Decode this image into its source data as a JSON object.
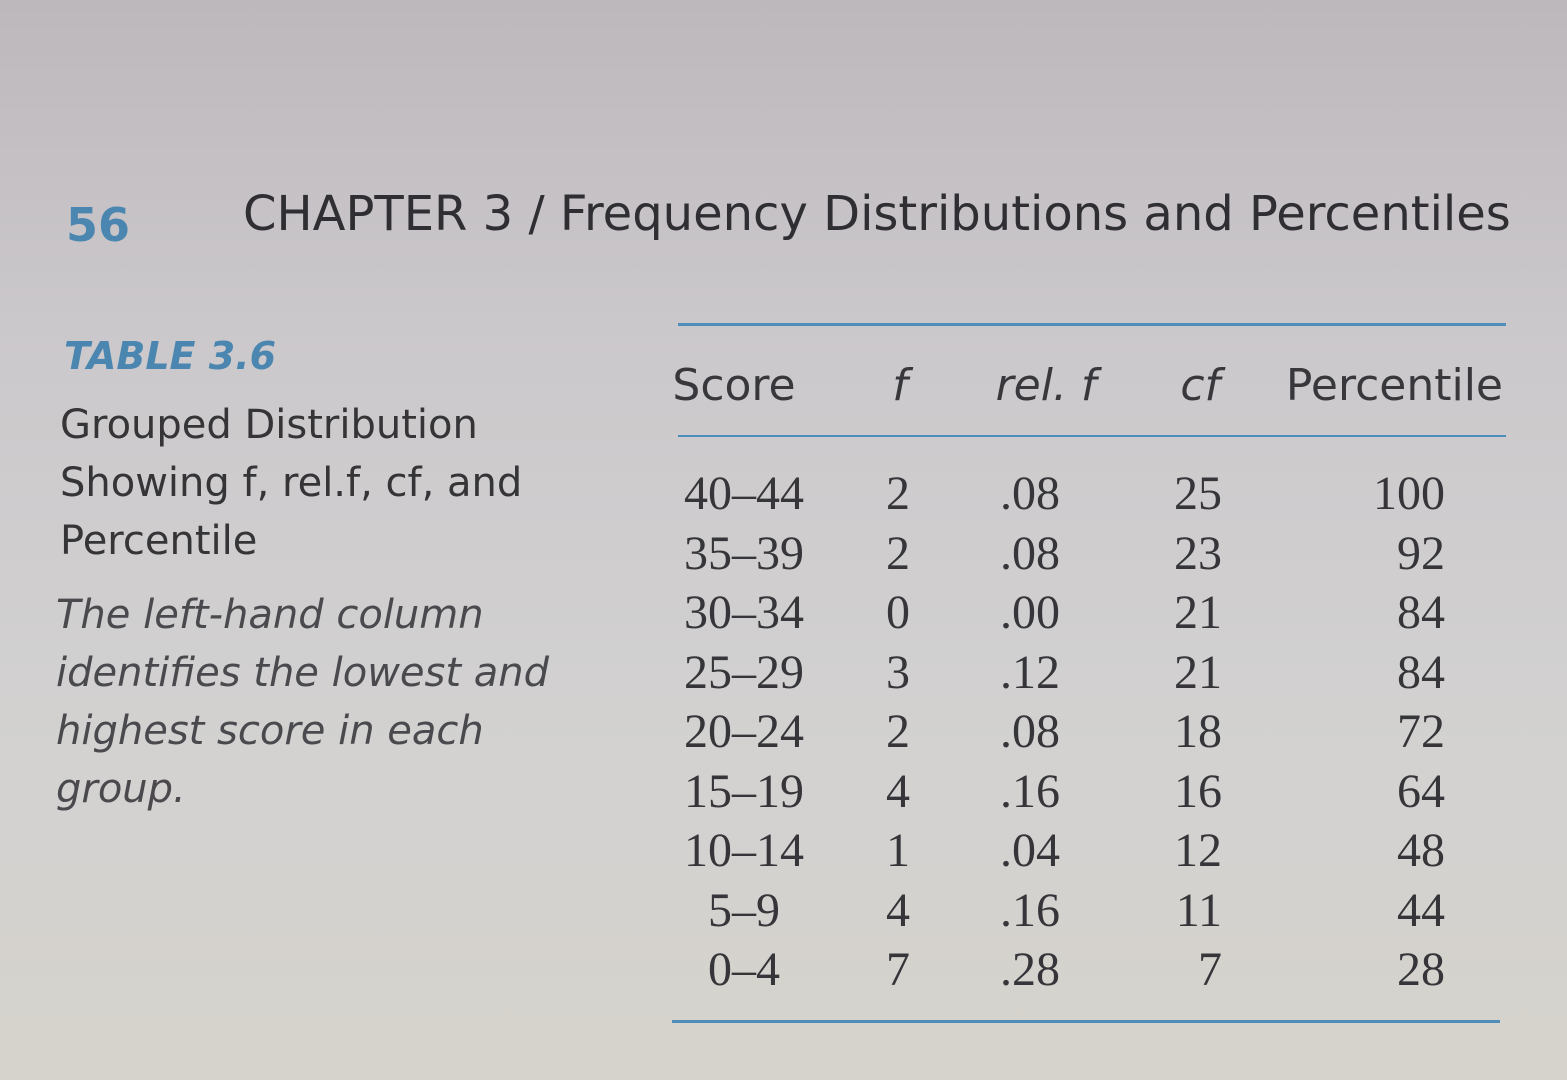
{
  "header": {
    "page_number": "56",
    "chapter": "CHAPTER 3 / Frequency Distributions and Percentiles"
  },
  "caption": {
    "label": "TABLE 3.6",
    "title": "Grouped Distribution Showing f, rel.f, cf, and Percentile",
    "note": "The left-hand column identifies the lowest and highest score in each group."
  },
  "table": {
    "columns": [
      "Score",
      "f",
      "rel. f",
      "cf",
      "Percentile"
    ],
    "rows": [
      [
        "40–44",
        "2",
        ".08",
        "25",
        "100"
      ],
      [
        "35–39",
        "2",
        ".08",
        "23",
        "92"
      ],
      [
        "30–34",
        "0",
        ".00",
        "21",
        "84"
      ],
      [
        "25–29",
        "3",
        ".12",
        "21",
        "84"
      ],
      [
        "20–24",
        "2",
        ".08",
        "18",
        "72"
      ],
      [
        "15–19",
        "4",
        ".16",
        "16",
        "64"
      ],
      [
        "10–14",
        "1",
        ".04",
        "12",
        "48"
      ],
      [
        "5–9",
        "4",
        ".16",
        "11",
        "44"
      ],
      [
        "0–4",
        "7",
        ".28",
        "7",
        "28"
      ]
    ]
  }
}
